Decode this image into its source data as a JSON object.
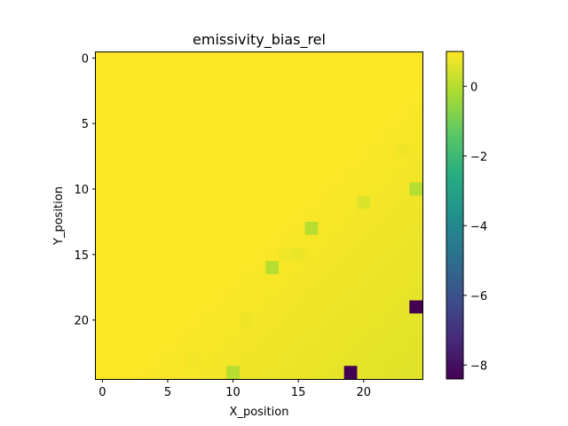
{
  "chart_data": {
    "type": "heatmap",
    "title": "emissivity_bias_rel",
    "xlabel": "X_position",
    "ylabel": "Y_position",
    "grid": false,
    "size": [
      25,
      25
    ],
    "xlim": [
      -0.5,
      24.5
    ],
    "ylim": [
      24.5,
      -0.5
    ],
    "x_ticks": [
      0,
      5,
      10,
      15,
      20
    ],
    "y_ticks": [
      0,
      5,
      10,
      15,
      20
    ],
    "colormap": "viridis",
    "colorbar": {
      "min": -8.4,
      "max": 1.0,
      "ticks": [
        0,
        -2,
        -4,
        -6,
        -8
      ]
    },
    "outliers": [
      {
        "x": 24,
        "y": 10,
        "value": 0.0
      },
      {
        "x": 16,
        "y": 13,
        "value": 0.0
      },
      {
        "x": 13,
        "y": 16,
        "value": 0.0
      },
      {
        "x": 10,
        "y": 24,
        "value": 0.0
      },
      {
        "x": 24,
        "y": 19,
        "value": -8.4
      },
      {
        "x": 19,
        "y": 24,
        "value": -8.4
      }
    ],
    "speckles": [
      {
        "x": 23,
        "y": 7,
        "value": 0.82
      },
      {
        "x": 20,
        "y": 11,
        "value": 0.55
      },
      {
        "x": 11,
        "y": 20,
        "value": 0.8
      },
      {
        "x": 7,
        "y": 23,
        "value": 0.85
      },
      {
        "x": 15,
        "y": 15,
        "value": 0.75
      },
      {
        "x": 14,
        "y": 15,
        "value": 0.82
      }
    ]
  }
}
